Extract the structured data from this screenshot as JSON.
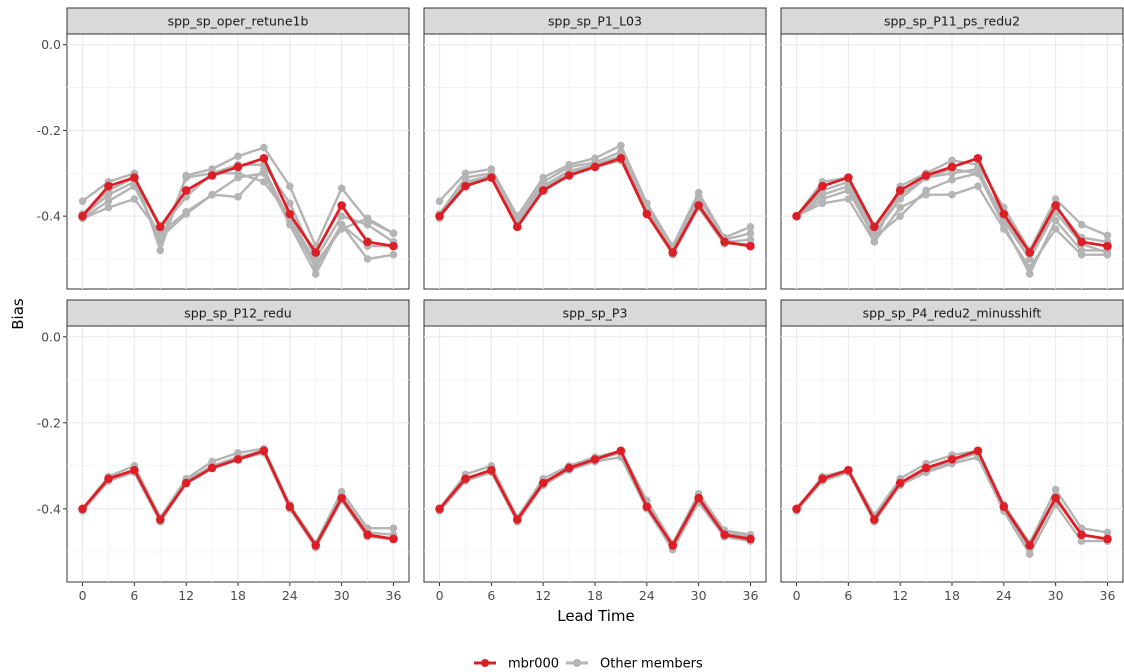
{
  "chart_data": {
    "type": "line",
    "layout": "facet-grid 2x3, shared axes",
    "xlabel": "Lead Time",
    "ylabel": "Bias",
    "x": [
      0,
      3,
      6,
      9,
      12,
      15,
      18,
      21,
      24,
      27,
      30,
      33,
      36
    ],
    "x_ticks": [
      "0",
      "6",
      "12",
      "18",
      "24",
      "30",
      "36"
    ],
    "y_ticks": [
      "0.0",
      "-0.2",
      "-0.4"
    ],
    "xlim": [
      -1.8,
      37.8
    ],
    "ylim": [
      -0.57,
      0.025
    ],
    "grid": true,
    "legend_position": "bottom",
    "legend": [
      {
        "label": "mbr000",
        "color": "#dc1f26"
      },
      {
        "label": "Other members",
        "color": "#b4b4b4"
      }
    ],
    "panels": [
      {
        "title": "spp_sp_oper_retune1b",
        "highlight": [
          -0.4,
          -0.33,
          -0.31,
          -0.425,
          -0.34,
          -0.305,
          -0.285,
          -0.265,
          -0.395,
          -0.485,
          -0.375,
          -0.46,
          -0.47
        ],
        "others": [
          [
            -0.365,
            -0.32,
            -0.3,
            -0.48,
            -0.305,
            -0.29,
            -0.26,
            -0.24,
            -0.33,
            -0.47,
            -0.335,
            -0.41,
            -0.44
          ],
          [
            -0.4,
            -0.35,
            -0.32,
            -0.46,
            -0.31,
            -0.3,
            -0.28,
            -0.28,
            -0.37,
            -0.5,
            -0.4,
            -0.42,
            -0.46
          ],
          [
            -0.405,
            -0.38,
            -0.36,
            -0.44,
            -0.39,
            -0.35,
            -0.355,
            -0.29,
            -0.41,
            -0.52,
            -0.42,
            -0.5,
            -0.49
          ],
          [
            -0.405,
            -0.365,
            -0.33,
            -0.45,
            -0.395,
            -0.35,
            -0.31,
            -0.3,
            -0.42,
            -0.535,
            -0.42,
            -0.47,
            -0.47
          ],
          [
            -0.395,
            -0.34,
            -0.31,
            -0.43,
            -0.355,
            -0.3,
            -0.3,
            -0.32,
            -0.4,
            -0.51,
            -0.43,
            -0.405,
            -0.44
          ]
        ]
      },
      {
        "title": "spp_sp_P1_L03",
        "highlight": [
          -0.4,
          -0.33,
          -0.31,
          -0.425,
          -0.34,
          -0.305,
          -0.285,
          -0.265,
          -0.395,
          -0.485,
          -0.375,
          -0.46,
          -0.47
        ],
        "others": [
          [
            -0.365,
            -0.3,
            -0.29,
            -0.4,
            -0.31,
            -0.28,
            -0.265,
            -0.235,
            -0.37,
            -0.47,
            -0.345,
            -0.45,
            -0.425
          ],
          [
            -0.395,
            -0.31,
            -0.3,
            -0.41,
            -0.32,
            -0.285,
            -0.275,
            -0.25,
            -0.38,
            -0.48,
            -0.355,
            -0.455,
            -0.44
          ],
          [
            -0.4,
            -0.32,
            -0.305,
            -0.42,
            -0.33,
            -0.295,
            -0.28,
            -0.26,
            -0.39,
            -0.49,
            -0.37,
            -0.46,
            -0.455
          ],
          [
            -0.405,
            -0.325,
            -0.31,
            -0.425,
            -0.335,
            -0.3,
            -0.285,
            -0.27,
            -0.395,
            -0.49,
            -0.38,
            -0.465,
            -0.465
          ]
        ]
      },
      {
        "title": "spp_sp_P11_ps_redu2",
        "highlight": [
          -0.4,
          -0.33,
          -0.31,
          -0.425,
          -0.34,
          -0.305,
          -0.285,
          -0.265,
          -0.395,
          -0.485,
          -0.375,
          -0.46,
          -0.47
        ],
        "others": [
          [
            -0.4,
            -0.32,
            -0.31,
            -0.46,
            -0.33,
            -0.3,
            -0.27,
            -0.28,
            -0.38,
            -0.48,
            -0.36,
            -0.42,
            -0.445
          ],
          [
            -0.4,
            -0.35,
            -0.33,
            -0.44,
            -0.36,
            -0.31,
            -0.29,
            -0.3,
            -0.4,
            -0.5,
            -0.38,
            -0.45,
            -0.46
          ],
          [
            -0.4,
            -0.37,
            -0.36,
            -0.46,
            -0.38,
            -0.35,
            -0.35,
            -0.33,
            -0.43,
            -0.52,
            -0.43,
            -0.49,
            -0.49
          ],
          [
            -0.4,
            -0.36,
            -0.34,
            -0.45,
            -0.4,
            -0.34,
            -0.315,
            -0.3,
            -0.42,
            -0.535,
            -0.41,
            -0.48,
            -0.48
          ],
          [
            -0.4,
            -0.34,
            -0.32,
            -0.43,
            -0.35,
            -0.31,
            -0.3,
            -0.29,
            -0.41,
            -0.5,
            -0.39,
            -0.465,
            -0.485
          ]
        ]
      },
      {
        "title": "spp_sp_P12_redu",
        "highlight": [
          -0.4,
          -0.33,
          -0.31,
          -0.425,
          -0.34,
          -0.305,
          -0.285,
          -0.265,
          -0.395,
          -0.485,
          -0.375,
          -0.46,
          -0.47
        ],
        "others": [
          [
            -0.4,
            -0.325,
            -0.3,
            -0.42,
            -0.33,
            -0.29,
            -0.27,
            -0.26,
            -0.39,
            -0.48,
            -0.36,
            -0.445,
            -0.445
          ],
          [
            -0.4,
            -0.33,
            -0.31,
            -0.425,
            -0.335,
            -0.3,
            -0.28,
            -0.265,
            -0.395,
            -0.485,
            -0.37,
            -0.455,
            -0.46
          ],
          [
            -0.405,
            -0.335,
            -0.315,
            -0.43,
            -0.34,
            -0.305,
            -0.285,
            -0.27,
            -0.4,
            -0.49,
            -0.38,
            -0.465,
            -0.47
          ]
        ]
      },
      {
        "title": "spp_sp_P3",
        "highlight": [
          -0.4,
          -0.33,
          -0.31,
          -0.425,
          -0.34,
          -0.305,
          -0.285,
          -0.265,
          -0.395,
          -0.485,
          -0.375,
          -0.46,
          -0.47
        ],
        "others": [
          [
            -0.4,
            -0.32,
            -0.3,
            -0.42,
            -0.33,
            -0.3,
            -0.28,
            -0.265,
            -0.38,
            -0.48,
            -0.365,
            -0.45,
            -0.46
          ],
          [
            -0.4,
            -0.33,
            -0.31,
            -0.425,
            -0.34,
            -0.305,
            -0.285,
            -0.27,
            -0.39,
            -0.49,
            -0.375,
            -0.455,
            -0.465
          ],
          [
            -0.405,
            -0.335,
            -0.315,
            -0.43,
            -0.345,
            -0.31,
            -0.29,
            -0.28,
            -0.4,
            -0.495,
            -0.385,
            -0.465,
            -0.475
          ]
        ]
      },
      {
        "title": "spp_sp_P4_redu2_minusshift",
        "highlight": [
          -0.4,
          -0.33,
          -0.31,
          -0.425,
          -0.34,
          -0.305,
          -0.285,
          -0.265,
          -0.395,
          -0.485,
          -0.375,
          -0.46,
          -0.47
        ],
        "others": [
          [
            -0.4,
            -0.325,
            -0.31,
            -0.415,
            -0.33,
            -0.295,
            -0.275,
            -0.265,
            -0.39,
            -0.48,
            -0.355,
            -0.445,
            -0.455
          ],
          [
            -0.4,
            -0.33,
            -0.31,
            -0.425,
            -0.34,
            -0.31,
            -0.29,
            -0.27,
            -0.4,
            -0.495,
            -0.37,
            -0.46,
            -0.47
          ],
          [
            -0.405,
            -0.335,
            -0.315,
            -0.43,
            -0.345,
            -0.315,
            -0.295,
            -0.28,
            -0.405,
            -0.505,
            -0.39,
            -0.475,
            -0.475
          ]
        ]
      }
    ]
  }
}
